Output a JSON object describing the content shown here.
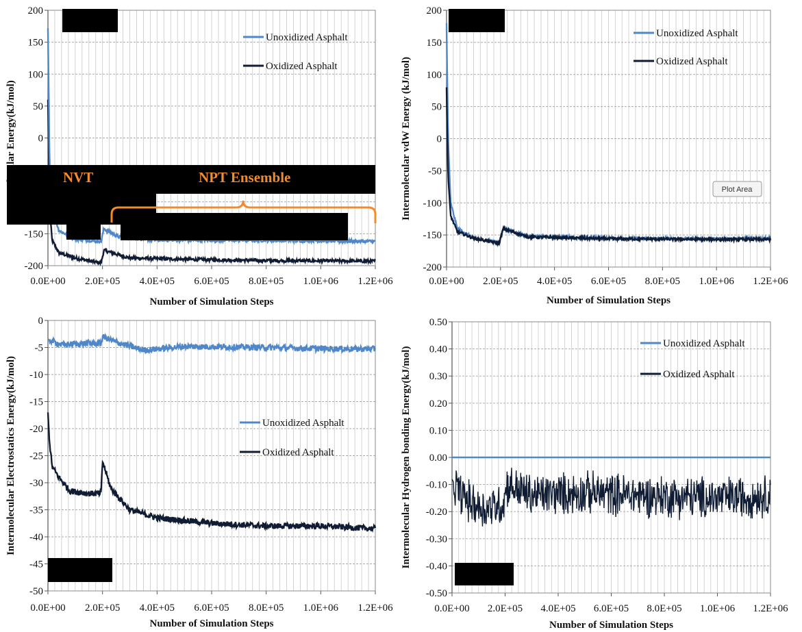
{
  "colors": {
    "unoxidized": "#4f87c8",
    "oxidized": "#101c33",
    "grid": "#c8c8c8",
    "annotation": "#f08c30",
    "redaction": "#000000"
  },
  "chart_data": [
    {
      "id": "tl",
      "type": "line",
      "xlabel": "Number of Simulation  Steps",
      "ylabel": "molecular  Energy(kJ/mol)",
      "x_ticks": [
        "0.0E+00",
        "2.0E+05",
        "4.0E+05",
        "6.0E+05",
        "8.0E+05",
        "1.0E+06",
        "1.2E+06"
      ],
      "y_ticks": [
        "200",
        "150",
        "100",
        "50",
        "0",
        "-50",
        "-100",
        "-150",
        "-200"
      ],
      "xlim": [
        0,
        1200000
      ],
      "ylim": [
        -200,
        200
      ],
      "grid": true,
      "legend_position": "top-right",
      "series": [
        {
          "name": "Unoxidized Asphalt",
          "color_key": "unoxidized",
          "points": [
            [
              0,
              172
            ],
            [
              2000,
              100
            ],
            [
              6000,
              -40
            ],
            [
              15000,
              -110
            ],
            [
              40000,
              -145
            ],
            [
              100000,
              -158
            ],
            [
              195000,
              -162
            ],
            [
              205000,
              -142
            ],
            [
              260000,
              -155
            ],
            [
              400000,
              -160
            ],
            [
              700000,
              -160
            ],
            [
              1000000,
              -161
            ],
            [
              1200000,
              -162
            ]
          ]
        },
        {
          "name": "Oxidized Asphalt",
          "color_key": "oxidized",
          "points": [
            [
              0,
              60
            ],
            [
              2000,
              0
            ],
            [
              6000,
              -110
            ],
            [
              15000,
              -160
            ],
            [
              40000,
              -180
            ],
            [
              100000,
              -188
            ],
            [
              195000,
              -196
            ],
            [
              205000,
              -176
            ],
            [
              300000,
              -188
            ],
            [
              500000,
              -190
            ],
            [
              800000,
              -192
            ],
            [
              1200000,
              -193
            ]
          ]
        }
      ],
      "annotations": [
        "NVT",
        "NPT Ensemble"
      ]
    },
    {
      "id": "tr",
      "type": "line",
      "xlabel": "Number of Simulation  Steps",
      "ylabel": "Intermolecular  vdW Energy (kJ/mol)",
      "x_ticks": [
        "0.0E+00",
        "2.0E+05",
        "4.0E+05",
        "6.0E+05",
        "8.0E+05",
        "1.0E+06",
        "1.2E+06"
      ],
      "y_ticks": [
        "200",
        "150",
        "100",
        "50",
        "0",
        "-50",
        "-100",
        "-150",
        "-200"
      ],
      "xlim": [
        0,
        1200000
      ],
      "ylim": [
        -200,
        200
      ],
      "grid": true,
      "legend_position": "top-right",
      "series": [
        {
          "name": "Unoxidized Asphalt",
          "color_key": "unoxidized",
          "points": [
            [
              0,
              180
            ],
            [
              2000,
              110
            ],
            [
              6000,
              0
            ],
            [
              15000,
              -100
            ],
            [
              40000,
              -140
            ],
            [
              100000,
              -155
            ],
            [
              195000,
              -162
            ],
            [
              210000,
              -140
            ],
            [
              300000,
              -152
            ],
            [
              600000,
              -155
            ],
            [
              1000000,
              -156
            ],
            [
              1200000,
              -155
            ]
          ]
        },
        {
          "name": "Oxidized Asphalt",
          "color_key": "oxidized",
          "points": [
            [
              0,
              80
            ],
            [
              2000,
              20
            ],
            [
              6000,
              -60
            ],
            [
              15000,
              -120
            ],
            [
              40000,
              -145
            ],
            [
              100000,
              -155
            ],
            [
              195000,
              -163
            ],
            [
              210000,
              -140
            ],
            [
              300000,
              -153
            ],
            [
              600000,
              -156
            ],
            [
              1000000,
              -157
            ],
            [
              1200000,
              -157
            ]
          ]
        }
      ],
      "plot_area_label": "Plot Area"
    },
    {
      "id": "bl",
      "type": "line",
      "xlabel": "Number of Simulation  Steps",
      "ylabel": "Intermolecular  Electrostatics  Energy(kJ/mol)",
      "x_ticks": [
        "0.0E+00",
        "2.0E+05",
        "4.0E+05",
        "6.0E+05",
        "8.0E+05",
        "1.0E+06",
        "1.2E+06"
      ],
      "y_ticks": [
        "0",
        "-5",
        "-10",
        "-15",
        "-20",
        "-25",
        "-30",
        "-35",
        "-40",
        "-45",
        "-50"
      ],
      "xlim": [
        0,
        1200000
      ],
      "ylim": [
        -50,
        0
      ],
      "grid": true,
      "legend_position": "center-right",
      "series": [
        {
          "name": "Unoxidized Asphalt",
          "color_key": "unoxidized",
          "points": [
            [
              0,
              -3.5
            ],
            [
              50000,
              -4.5
            ],
            [
              150000,
              -4.2
            ],
            [
              195000,
              -4.3
            ],
            [
              200000,
              -3.0
            ],
            [
              250000,
              -4.0
            ],
            [
              350000,
              -5.5
            ],
            [
              500000,
              -4.8
            ],
            [
              800000,
              -5.0
            ],
            [
              1000000,
              -5.2
            ],
            [
              1200000,
              -5.3
            ]
          ]
        },
        {
          "name": "Oxidized Asphalt",
          "color_key": "oxidized",
          "points": [
            [
              0,
              -17
            ],
            [
              5000,
              -22
            ],
            [
              15000,
              -27
            ],
            [
              40000,
              -29
            ],
            [
              80000,
              -31.5
            ],
            [
              150000,
              -32
            ],
            [
              195000,
              -32
            ],
            [
              200000,
              -26
            ],
            [
              230000,
              -31
            ],
            [
              300000,
              -35
            ],
            [
              400000,
              -36.5
            ],
            [
              600000,
              -37.5
            ],
            [
              800000,
              -38
            ],
            [
              1000000,
              -38
            ],
            [
              1200000,
              -38.5
            ]
          ]
        }
      ]
    },
    {
      "id": "br",
      "type": "line",
      "xlabel": "Number of Simulation  Steps",
      "ylabel": "Intermolecular  Hydrogen  bonding  Energy(kJ/mol)",
      "x_ticks": [
        "0.0E+00",
        "2.0E+05",
        "4.0E+05",
        "6.0E+05",
        "8.0E+05",
        "1.0E+06",
        "1.2E+06"
      ],
      "y_ticks": [
        "0.50",
        "0.40",
        "0.30",
        "0.20",
        "0.10",
        "0.00",
        "-0.10",
        "-0.20",
        "-0.30",
        "-0.40",
        "-0.50"
      ],
      "xlim": [
        0,
        1200000
      ],
      "ylim": [
        -0.5,
        0.5
      ],
      "grid": true,
      "legend_position": "top-right",
      "series": [
        {
          "name": "Unoxidized Asphalt",
          "color_key": "unoxidized",
          "points": [
            [
              0,
              0
            ],
            [
              1200000,
              0
            ]
          ]
        },
        {
          "name": "Oxidized Asphalt",
          "color_key": "oxidized",
          "points": [
            [
              0,
              -0.08
            ],
            [
              20000,
              -0.12
            ],
            [
              60000,
              -0.16
            ],
            [
              120000,
              -0.19
            ],
            [
              195000,
              -0.17
            ],
            [
              205000,
              -0.1
            ],
            [
              300000,
              -0.14
            ],
            [
              500000,
              -0.13
            ],
            [
              700000,
              -0.14
            ],
            [
              1000000,
              -0.15
            ],
            [
              1200000,
              -0.14
            ]
          ]
        }
      ]
    }
  ]
}
